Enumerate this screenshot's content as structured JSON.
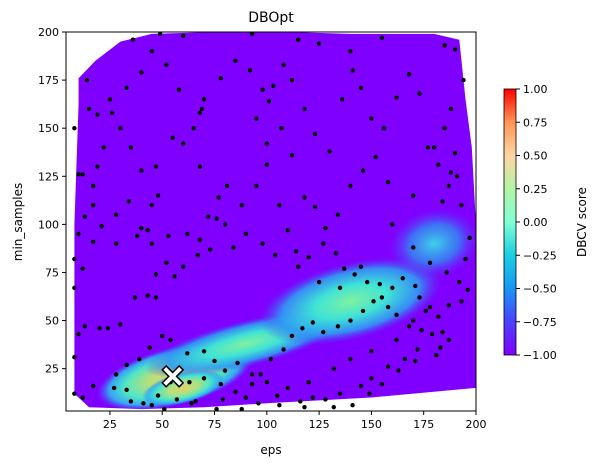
{
  "chart_data": {
    "type": "heatmap",
    "title": "DBOpt",
    "xlabel": "eps",
    "ylabel": "min_samples",
    "xlim": [
      4,
      200
    ],
    "ylim": [
      3,
      200
    ],
    "xticks": [
      25,
      50,
      75,
      100,
      125,
      150,
      175,
      200
    ],
    "yticks": [
      25,
      50,
      75,
      100,
      125,
      150,
      175,
      200
    ],
    "colorbar": {
      "label": "DBCV score",
      "range": [
        -1.0,
        1.0
      ],
      "ticks": [
        "1.00",
        "0.75",
        "0.50",
        "0.25",
        "0.00",
        "−0.25",
        "−0.50",
        "−0.75",
        "−1.00"
      ],
      "colormap": "rainbow"
    },
    "surface_outline": [
      [
        8,
        12
      ],
      [
        8,
        100
      ],
      [
        10,
        163
      ],
      [
        10,
        176
      ],
      [
        18,
        185
      ],
      [
        30,
        195
      ],
      [
        45,
        199
      ],
      [
        75,
        200
      ],
      [
        110,
        200
      ],
      [
        140,
        199
      ],
      [
        180,
        199
      ],
      [
        192,
        196
      ],
      [
        195,
        165
      ],
      [
        198,
        140
      ],
      [
        200,
        100
      ],
      [
        200,
        15
      ],
      [
        150,
        10
      ],
      [
        100,
        7
      ],
      [
        70,
        5
      ],
      [
        40,
        4
      ],
      [
        15,
        5
      ]
    ],
    "high_score_regions": [
      {
        "cx": 56,
        "cy": 21,
        "rx": 38,
        "ry": 15,
        "value": 0.2
      },
      {
        "cx": 90,
        "cy": 38,
        "rx": 50,
        "ry": 12,
        "value": 0.0
      },
      {
        "cx": 140,
        "cy": 60,
        "rx": 45,
        "ry": 20,
        "value": -0.05
      },
      {
        "cx": 180,
        "cy": 90,
        "rx": 22,
        "ry": 18,
        "value": -0.25
      },
      {
        "cx": 60,
        "cy": 15,
        "rx": 20,
        "ry": 8,
        "value": 0.3
      }
    ],
    "samples": [
      [
        14,
        175
      ],
      [
        36,
        196
      ],
      [
        49,
        199
      ],
      [
        60,
        198
      ],
      [
        93,
        199
      ],
      [
        115,
        196
      ],
      [
        125,
        194
      ],
      [
        140,
        190
      ],
      [
        155,
        197
      ],
      [
        185,
        193
      ],
      [
        190,
        191
      ],
      [
        194,
        175
      ],
      [
        188,
        160
      ],
      [
        185,
        150
      ],
      [
        180,
        140
      ],
      [
        187,
        120
      ],
      [
        193,
        110
      ],
      [
        197,
        93
      ],
      [
        195,
        82
      ],
      [
        193,
        60
      ],
      [
        187,
        58
      ],
      [
        176,
        55
      ],
      [
        170,
        50
      ],
      [
        162,
        40
      ],
      [
        150,
        34
      ],
      [
        140,
        30
      ],
      [
        132,
        25
      ],
      [
        120,
        18
      ],
      [
        105,
        11
      ],
      [
        90,
        10
      ],
      [
        79,
        9
      ],
      [
        66,
        8
      ],
      [
        57,
        9
      ],
      [
        45,
        6
      ],
      [
        33,
        14
      ],
      [
        17,
        16
      ],
      [
        12,
        10
      ],
      [
        8,
        12
      ],
      [
        8,
        31
      ],
      [
        10,
        43
      ],
      [
        13,
        47
      ],
      [
        20,
        46
      ],
      [
        24,
        46
      ],
      [
        30,
        48
      ],
      [
        37,
        62
      ],
      [
        43,
        63
      ],
      [
        47,
        62
      ],
      [
        47,
        74
      ],
      [
        56,
        73
      ],
      [
        72,
        104
      ],
      [
        76,
        103
      ],
      [
        81,
        120
      ],
      [
        77,
        114
      ],
      [
        68,
        130
      ],
      [
        60,
        142
      ],
      [
        69,
        160
      ],
      [
        68,
        158
      ],
      [
        55,
        145
      ],
      [
        47,
        130
      ],
      [
        48,
        115
      ],
      [
        43,
        97
      ],
      [
        38,
        94
      ],
      [
        28,
        90
      ],
      [
        17,
        91
      ],
      [
        12,
        77
      ],
      [
        8,
        67
      ],
      [
        8,
        82
      ],
      [
        10,
        95
      ],
      [
        13,
        104
      ],
      [
        17,
        120
      ],
      [
        10,
        126
      ],
      [
        12,
        126
      ],
      [
        8,
        150
      ],
      [
        15,
        160
      ],
      [
        19,
        157
      ],
      [
        25,
        165
      ],
      [
        30,
        150
      ],
      [
        35,
        140
      ],
      [
        40,
        128
      ],
      [
        45,
        110
      ],
      [
        53,
        94
      ],
      [
        62,
        95
      ],
      [
        68,
        92
      ],
      [
        80,
        100
      ],
      [
        88,
        110
      ],
      [
        95,
        120
      ],
      [
        100,
        131
      ],
      [
        106,
        110
      ],
      [
        110,
        97
      ],
      [
        114,
        86
      ],
      [
        120,
        83
      ],
      [
        127,
        90
      ],
      [
        133,
        85
      ],
      [
        137,
        77
      ],
      [
        142,
        74
      ],
      [
        148,
        70
      ],
      [
        154,
        69
      ],
      [
        160,
        67
      ],
      [
        165,
        72
      ],
      [
        171,
        68
      ],
      [
        173,
        62
      ],
      [
        178,
        57
      ],
      [
        182,
        52
      ],
      [
        184,
        44
      ],
      [
        187,
        40
      ],
      [
        181,
        32
      ],
      [
        172,
        35
      ],
      [
        166,
        30
      ],
      [
        158,
        26
      ],
      [
        150,
        20
      ],
      [
        145,
        16
      ],
      [
        135,
        12
      ],
      [
        128,
        9
      ],
      [
        118,
        5
      ],
      [
        110,
        15
      ],
      [
        100,
        18
      ],
      [
        93,
        22
      ],
      [
        86,
        28
      ],
      [
        80,
        24
      ],
      [
        75,
        29
      ],
      [
        70,
        34
      ],
      [
        62,
        33
      ],
      [
        54,
        40
      ],
      [
        50,
        42
      ],
      [
        44,
        36
      ],
      [
        39,
        30
      ],
      [
        33,
        27
      ],
      [
        28,
        22
      ],
      [
        27,
        15
      ],
      [
        35,
        8
      ],
      [
        41,
        7
      ],
      [
        48,
        11
      ],
      [
        54,
        18
      ],
      [
        63,
        18
      ],
      [
        70,
        20
      ],
      [
        78,
        17
      ],
      [
        85,
        13
      ],
      [
        93,
        17
      ],
      [
        97,
        22
      ],
      [
        102,
        30
      ],
      [
        108,
        35
      ],
      [
        112,
        42
      ],
      [
        117,
        46
      ],
      [
        122,
        49
      ],
      [
        127,
        44
      ],
      [
        134,
        47
      ],
      [
        140,
        50
      ],
      [
        146,
        55
      ],
      [
        151,
        60
      ],
      [
        155,
        62
      ],
      [
        158,
        57
      ],
      [
        162,
        53
      ],
      [
        168,
        47
      ],
      [
        174,
        45
      ],
      [
        179,
        43
      ],
      [
        183,
        36
      ],
      [
        171,
        29
      ],
      [
        163,
        24
      ],
      [
        155,
        17
      ],
      [
        149,
        12
      ],
      [
        141,
        6
      ],
      [
        132,
        5
      ],
      [
        122,
        10
      ],
      [
        116,
        8
      ],
      [
        106,
        6
      ],
      [
        96,
        7
      ],
      [
        88,
        4
      ],
      [
        76,
        4
      ],
      [
        64,
        7
      ],
      [
        57,
        2
      ],
      [
        51,
        4
      ],
      [
        95,
        155
      ],
      [
        100,
        142
      ],
      [
        103,
        172
      ],
      [
        108,
        183
      ],
      [
        112,
        175
      ],
      [
        118,
        160
      ],
      [
        123,
        147
      ],
      [
        130,
        138
      ],
      [
        136,
        165
      ],
      [
        141,
        180
      ],
      [
        145,
        171
      ],
      [
        150,
        155
      ],
      [
        156,
        150
      ],
      [
        162,
        166
      ],
      [
        168,
        178
      ],
      [
        173,
        168
      ],
      [
        177,
        140
      ],
      [
        182,
        131
      ],
      [
        188,
        127
      ],
      [
        190,
        137
      ],
      [
        191,
        125
      ],
      [
        184,
        112
      ],
      [
        170,
        115
      ],
      [
        158,
        122
      ],
      [
        152,
        135
      ],
      [
        146,
        128
      ],
      [
        140,
        120
      ],
      [
        134,
        105
      ],
      [
        128,
        98
      ],
      [
        123,
        109
      ],
      [
        118,
        114
      ],
      [
        112,
        136
      ],
      [
        107,
        150
      ],
      [
        101,
        164
      ],
      [
        98,
        170
      ],
      [
        92,
        180
      ],
      [
        85,
        185
      ],
      [
        78,
        176
      ],
      [
        70,
        165
      ],
      [
        65,
        150
      ],
      [
        58,
        170
      ],
      [
        52,
        183
      ],
      [
        45,
        190
      ],
      [
        40,
        179
      ],
      [
        33,
        171
      ],
      [
        26,
        158
      ],
      [
        22,
        140
      ],
      [
        19,
        130
      ],
      [
        17,
        110
      ],
      [
        21,
        99
      ],
      [
        28,
        105
      ],
      [
        34,
        112
      ],
      [
        40,
        98
      ],
      [
        45,
        90
      ],
      [
        52,
        80
      ],
      [
        60,
        78
      ],
      [
        67,
        84
      ],
      [
        73,
        87
      ],
      [
        84,
        88
      ],
      [
        90,
        95
      ],
      [
        98,
        90
      ],
      [
        104,
        84
      ],
      [
        115,
        78
      ],
      [
        125,
        70
      ],
      [
        135,
        67
      ],
      [
        145,
        78
      ],
      [
        160,
        100
      ],
      [
        170,
        88
      ],
      [
        178,
        80
      ],
      [
        186,
        75
      ],
      [
        192,
        70
      ],
      [
        196,
        66
      ]
    ],
    "best_point": {
      "eps": 55,
      "min_samples": 21
    }
  }
}
